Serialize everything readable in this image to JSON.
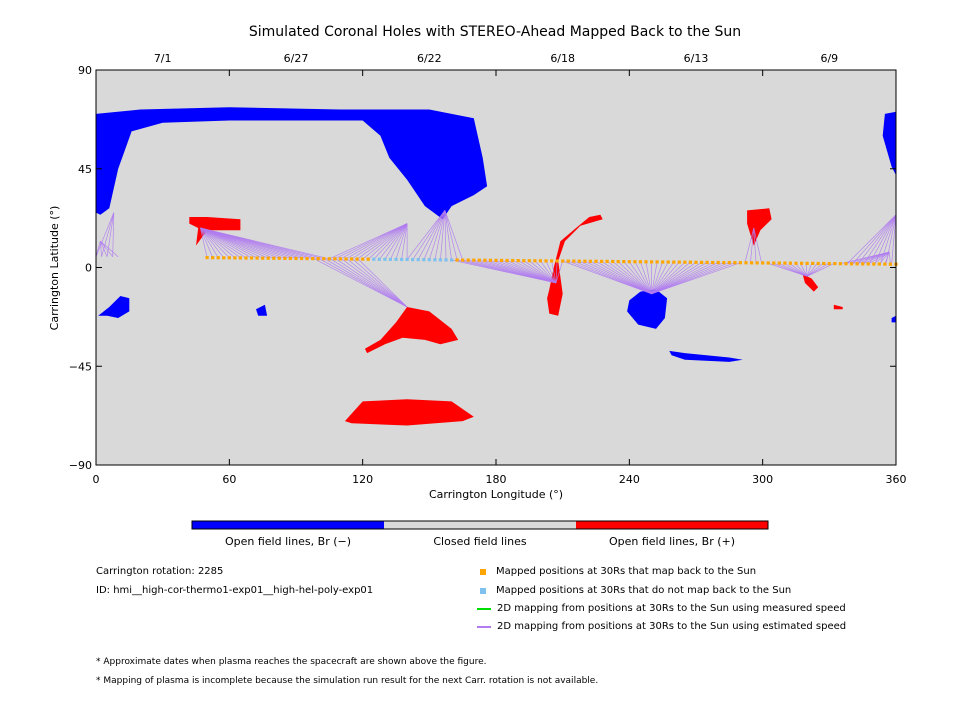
{
  "chart_data": {
    "type": "map",
    "title": "Simulated Coronal Holes with STEREO-Ahead Mapped Back to the Sun",
    "xlabel": "Carrington Longitude (°)",
    "ylabel": "Carrington Latitude (°)",
    "xlim": [
      0,
      360
    ],
    "ylim": [
      -90,
      90
    ],
    "x_ticks": [
      "0",
      "60",
      "120",
      "180",
      "240",
      "300",
      "360"
    ],
    "y_ticks": [
      "90",
      "45",
      "0",
      "-45",
      "-90"
    ],
    "top_axis_dates": [
      {
        "label": "7/1",
        "lon": 30
      },
      {
        "label": "6/27",
        "lon": 90
      },
      {
        "label": "6/22",
        "lon": 150
      },
      {
        "label": "6/18",
        "lon": 210
      },
      {
        "label": "6/13",
        "lon": 270
      },
      {
        "label": "6/9",
        "lon": 330
      }
    ],
    "colors": {
      "closed": "#d9d9d9",
      "open_negative": "#0000ff",
      "open_positive": "#ff0000",
      "mapped_back": "#ffa500",
      "not_mapped": "#7ec0ee",
      "measured_speed": "#00dd00",
      "estimated_speed": "#b07cf0"
    },
    "coronal_holes": [
      {
        "polarity": "negative",
        "points": [
          [
            0,
            70
          ],
          [
            20,
            72
          ],
          [
            60,
            73
          ],
          [
            110,
            72
          ],
          [
            150,
            72
          ],
          [
            170,
            68
          ],
          [
            174,
            50
          ],
          [
            176,
            37
          ],
          [
            170,
            33
          ],
          [
            160,
            28
          ],
          [
            156,
            22
          ],
          [
            148,
            28
          ],
          [
            140,
            40
          ],
          [
            132,
            50
          ],
          [
            128,
            60
          ],
          [
            120,
            67
          ],
          [
            90,
            67
          ],
          [
            60,
            67
          ],
          [
            30,
            66
          ],
          [
            16,
            62
          ],
          [
            10,
            45
          ],
          [
            6,
            27
          ],
          [
            2,
            24
          ],
          [
            0,
            25
          ]
        ]
      },
      {
        "polarity": "negative",
        "points": [
          [
            355,
            70
          ],
          [
            360,
            71
          ],
          [
            360,
            42
          ],
          [
            358,
            46
          ],
          [
            354,
            60
          ]
        ]
      },
      {
        "polarity": "negative",
        "points": [
          [
            1,
            -22
          ],
          [
            6,
            -18
          ],
          [
            11,
            -13
          ],
          [
            15,
            -14
          ],
          [
            15,
            -20
          ],
          [
            10,
            -23
          ],
          [
            5,
            -22
          ]
        ]
      },
      {
        "polarity": "negative",
        "points": [
          [
            72,
            -19
          ],
          [
            76,
            -17
          ],
          [
            77,
            -22
          ],
          [
            73,
            -22
          ]
        ]
      },
      {
        "polarity": "negative",
        "points": [
          [
            240,
            -15
          ],
          [
            245,
            -11
          ],
          [
            252,
            -10
          ],
          [
            257,
            -14
          ],
          [
            256,
            -23
          ],
          [
            252,
            -28
          ],
          [
            244,
            -26
          ],
          [
            239,
            -20
          ]
        ]
      },
      {
        "polarity": "negative",
        "points": [
          [
            258,
            -38
          ],
          [
            265,
            -39
          ],
          [
            285,
            -41
          ],
          [
            291,
            -42
          ],
          [
            285,
            -43
          ],
          [
            265,
            -42
          ],
          [
            259,
            -40
          ]
        ]
      },
      {
        "polarity": "negative",
        "points": [
          [
            358,
            -23
          ],
          [
            360,
            -22
          ],
          [
            360,
            -25
          ],
          [
            358,
            -25
          ]
        ]
      },
      {
        "polarity": "positive",
        "points": [
          [
            42,
            23
          ],
          [
            50,
            23
          ],
          [
            65,
            22
          ],
          [
            65,
            17
          ],
          [
            50,
            17
          ],
          [
            45,
            10
          ],
          [
            46,
            18
          ],
          [
            42,
            20
          ]
        ]
      },
      {
        "polarity": "positive",
        "points": [
          [
            121,
            -37
          ],
          [
            128,
            -33
          ],
          [
            135,
            -25
          ],
          [
            140,
            -18
          ],
          [
            150,
            -20
          ],
          [
            160,
            -28
          ],
          [
            163,
            -33
          ],
          [
            155,
            -35
          ],
          [
            148,
            -33
          ],
          [
            138,
            -32
          ],
          [
            130,
            -35
          ],
          [
            122,
            -39
          ]
        ]
      },
      {
        "polarity": "positive",
        "points": [
          [
            112,
            -70
          ],
          [
            120,
            -61
          ],
          [
            140,
            -60
          ],
          [
            160,
            -61
          ],
          [
            170,
            -68
          ],
          [
            165,
            -70
          ],
          [
            140,
            -72
          ],
          [
            115,
            -71
          ]
        ]
      },
      {
        "polarity": "positive",
        "points": [
          [
            204,
            -10
          ],
          [
            206,
            0
          ],
          [
            209,
            12
          ],
          [
            216,
            18
          ],
          [
            222,
            23
          ],
          [
            227,
            24
          ],
          [
            228,
            22
          ],
          [
            218,
            19
          ],
          [
            211,
            12
          ],
          [
            208,
            3
          ],
          [
            210,
            -12
          ],
          [
            208,
            -22
          ],
          [
            204,
            -21
          ],
          [
            203,
            -14
          ]
        ]
      },
      {
        "polarity": "positive",
        "points": [
          [
            293,
            26
          ],
          [
            303,
            27
          ],
          [
            304,
            22
          ],
          [
            299,
            17
          ],
          [
            296,
            10
          ],
          [
            293,
            20
          ]
        ]
      },
      {
        "polarity": "positive",
        "points": [
          [
            318,
            -3
          ],
          [
            322,
            -5
          ],
          [
            325,
            -9
          ],
          [
            323,
            -11
          ],
          [
            319,
            -7
          ]
        ]
      },
      {
        "polarity": "positive",
        "points": [
          [
            332,
            -17
          ],
          [
            336,
            -18
          ],
          [
            336,
            -19
          ],
          [
            332,
            -19
          ]
        ]
      }
    ],
    "mapped_positions": {
      "lon_start": 50,
      "lon_end": 360,
      "lon_step": 2.5,
      "lat_start": 4.5,
      "lat_end": 1.5,
      "not_mapped_lon_range": [
        123,
        160
      ]
    },
    "estimated_speed_fans": [
      {
        "target": [
          2,
          12
        ],
        "lon_range": [
          0,
          10
        ]
      },
      {
        "target": [
          8,
          25
        ],
        "lon_range": [
          0,
          8
        ]
      },
      {
        "target": [
          357,
          7
        ],
        "lon_range": [
          335,
          358
        ]
      },
      {
        "target": [
          360,
          24
        ],
        "lon_range": [
          338,
          360
        ]
      },
      {
        "target": [
          47,
          18
        ],
        "lon_range": [
          50,
          105
        ]
      },
      {
        "target": [
          140,
          20
        ],
        "lon_range": [
          105,
          140
        ]
      },
      {
        "target": [
          157,
          26
        ],
        "lon_range": [
          140,
          165
        ]
      },
      {
        "target": [
          140,
          -18
        ],
        "lon_range": [
          98,
          118
        ]
      },
      {
        "target": [
          207,
          -7
        ],
        "lon_range": [
          160,
          212
        ]
      },
      {
        "target": [
          250,
          -12
        ],
        "lon_range": [
          210,
          290
        ]
      },
      {
        "target": [
          296,
          18
        ],
        "lon_range": [
          292,
          300
        ]
      },
      {
        "target": [
          320,
          -4
        ],
        "lon_range": [
          302,
          332
        ]
      }
    ]
  },
  "colorbar": {
    "labels": [
      "Open field lines, Br (−)",
      "Closed field lines",
      "Open field lines, Br (+)"
    ]
  },
  "info": {
    "rotation": "Carrington rotation: 2285",
    "id": "ID: hmi__high-cor-thermo1-exp01__high-hel-poly-exp01"
  },
  "legend": [
    {
      "label": "Mapped positions at 30Rs that map back to the Sun",
      "kind": "square",
      "color": "#ffa500"
    },
    {
      "label": "Mapped positions at 30Rs that do not map back to the Sun",
      "kind": "square",
      "color": "#7ec0ee"
    },
    {
      "label": "2D mapping from positions at 30Rs to the Sun using measured speed",
      "kind": "line",
      "color": "#00dd00"
    },
    {
      "label": "2D mapping from positions at 30Rs to the Sun using estimated speed",
      "kind": "line",
      "color": "#b07cf0"
    }
  ],
  "notes": [
    "* Approximate dates when plasma reaches the spacecraft are shown above the figure.",
    "* Mapping of plasma is incomplete because the simulation run result for the next Carr. rotation is not available."
  ]
}
